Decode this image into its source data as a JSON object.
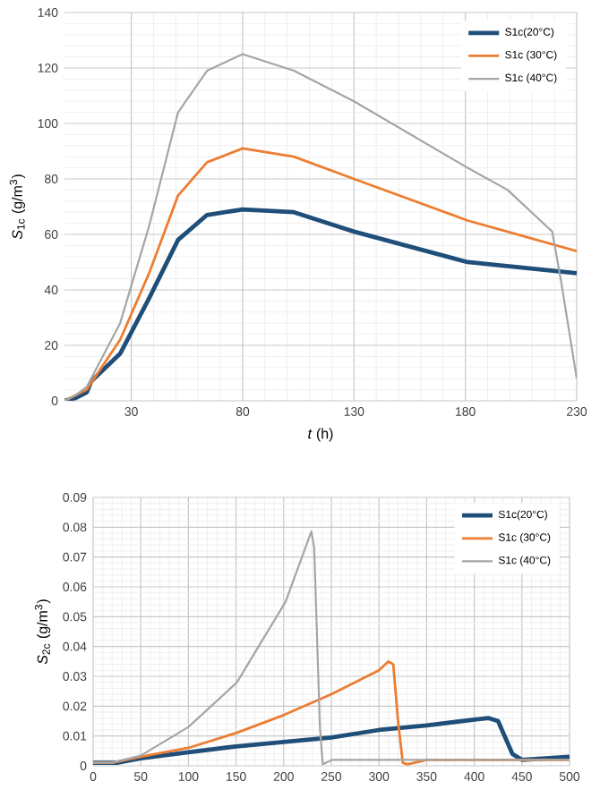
{
  "chart_data": [
    {
      "type": "line",
      "xlabel": "*t* (h)",
      "ylabel": "*S*$_{1c}$ (g/m$^{3}$)",
      "xlim": [
        0,
        230
      ],
      "ylim": [
        0,
        140
      ],
      "xticks": [
        30,
        80,
        130,
        180,
        230
      ],
      "yticks": [
        0,
        20,
        40,
        60,
        80,
        100,
        120,
        140
      ],
      "grid": true,
      "legend": "top right",
      "series": [
        {
          "name": "S1c(20°C)",
          "color": "#1f4e79",
          "x": [
            0,
            5,
            10,
            12,
            25,
            38,
            51,
            64,
            80,
            103,
            130,
            181,
            230
          ],
          "values": [
            0,
            1,
            3,
            7,
            17,
            37,
            58,
            67,
            69,
            68,
            61,
            50,
            46
          ]
        },
        {
          "name": "S1c (30°C)",
          "color": "#ed7d31",
          "x": [
            0,
            5,
            10,
            25,
            38,
            51,
            64,
            80,
            103,
            130,
            181,
            230
          ],
          "values": [
            0,
            2,
            4,
            22,
            46,
            74,
            86,
            91,
            88,
            80,
            65,
            54
          ]
        },
        {
          "name": "S1c (40°C)",
          "color": "#a5a5a5",
          "x": [
            0,
            5,
            10,
            25,
            38,
            51,
            64,
            80,
            103,
            130,
            181,
            199,
            219,
            223,
            230
          ],
          "values": [
            0,
            2,
            5,
            28,
            63,
            104,
            119,
            125,
            119,
            108,
            84,
            76,
            61,
            43,
            8
          ]
        }
      ]
    },
    {
      "type": "line",
      "ylabel": "*S*$_{2c}$ (g/m$^{3}$)",
      "xlim": [
        0,
        500
      ],
      "ylim": [
        0,
        0.09
      ],
      "xticks": [
        0,
        50,
        100,
        150,
        200,
        250,
        300,
        350,
        400,
        450,
        500
      ],
      "yticks": [
        0,
        0.01,
        0.02,
        0.03,
        0.04,
        0.05,
        0.06,
        0.07,
        0.08,
        0.09
      ],
      "grid": true,
      "legend": "top right",
      "series": [
        {
          "name": "S1c(20°C)",
          "color": "#1f4e79",
          "x": [
            0,
            25,
            50,
            100,
            150,
            200,
            250,
            300,
            350,
            400,
            415,
            425,
            440,
            450,
            500
          ],
          "values": [
            0.001,
            0.001,
            0.0025,
            0.0045,
            0.0065,
            0.008,
            0.0095,
            0.012,
            0.0135,
            0.0155,
            0.016,
            0.015,
            0.004,
            0.002,
            0.003
          ]
        },
        {
          "name": "S1c (30°C)",
          "color": "#ed7d31",
          "x": [
            0,
            20,
            50,
            100,
            150,
            200,
            250,
            300,
            310,
            315,
            320,
            325,
            330,
            350,
            500
          ],
          "values": [
            0.001,
            0.001,
            0.003,
            0.006,
            0.011,
            0.017,
            0.024,
            0.032,
            0.035,
            0.034,
            0.015,
            0.001,
            0.0005,
            0.002,
            0.002
          ]
        },
        {
          "name": "S1c (40°C)",
          "color": "#a5a5a5",
          "x": [
            0,
            20,
            50,
            100,
            151,
            202,
            229,
            232,
            238,
            241,
            251,
            500
          ],
          "values": [
            0.001,
            0.001,
            0.0034,
            0.013,
            0.028,
            0.055,
            0.0786,
            0.073,
            0.013,
            0.0005,
            0.002,
            0.002
          ]
        }
      ]
    }
  ]
}
